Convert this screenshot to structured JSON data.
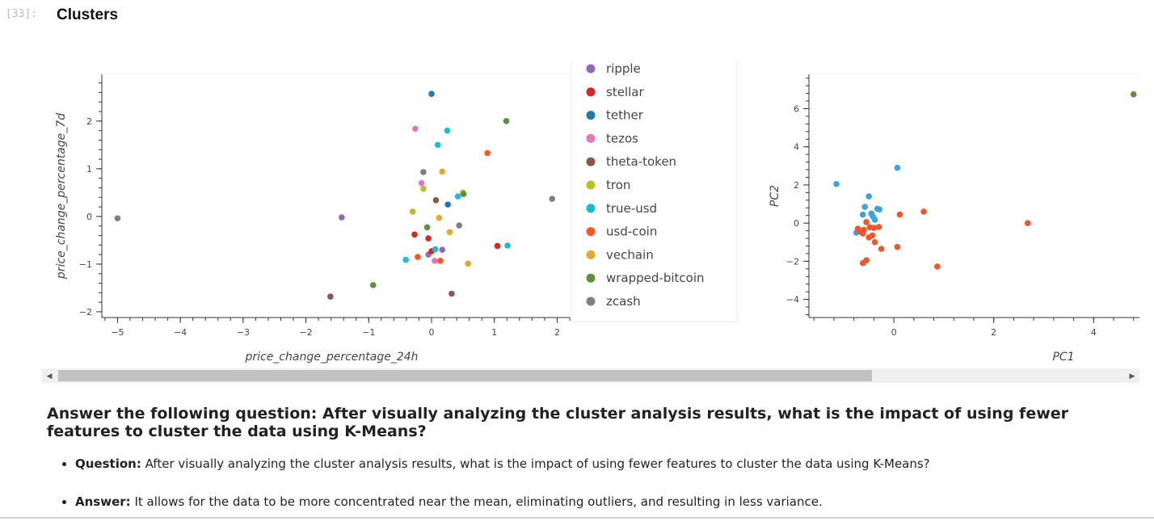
{
  "cell": {
    "prompt": "[33]:",
    "title": "Clusters"
  },
  "chart_data": [
    {
      "type": "scatter",
      "xlabel": "price_change_percentage_24h",
      "ylabel": "price_change_percentage_7d",
      "xlim": [
        -5.25,
        2.2
      ],
      "ylim": [
        -2.12,
        2.98
      ],
      "xticks": [
        -5,
        -4,
        -3,
        -2,
        -1,
        0,
        1,
        2
      ],
      "yticks": [
        -2,
        -1,
        0,
        1,
        2
      ],
      "legend_position": "right",
      "series": [
        {
          "name": "ripple",
          "color": "#9467bd",
          "points": [
            [
              -1.43,
              -0.02
            ],
            [
              -0.05,
              -0.8
            ],
            [
              0.17,
              -0.7
            ]
          ]
        },
        {
          "name": "stellar",
          "color": "#d62728",
          "points": [
            [
              -0.27,
              -0.38
            ],
            [
              -0.05,
              -0.46
            ],
            [
              0.0,
              -0.73
            ],
            [
              1.05,
              -0.62
            ]
          ]
        },
        {
          "name": "tether",
          "color": "#1f77b4",
          "points": [
            [
              0.0,
              2.57
            ],
            [
              0.26,
              0.25
            ]
          ]
        },
        {
          "name": "tezos",
          "color": "#e377c2",
          "points": [
            [
              -0.26,
              1.84
            ],
            [
              -0.16,
              0.7
            ],
            [
              0.05,
              -0.93
            ]
          ]
        },
        {
          "name": "theta-token",
          "color": "#8c564b",
          "points": [
            [
              -1.61,
              -1.68
            ],
            [
              0.07,
              0.34
            ],
            [
              0.32,
              -1.62
            ]
          ]
        },
        {
          "name": "tron",
          "color": "#bcbd22",
          "points": [
            [
              -0.3,
              0.1
            ],
            [
              -0.13,
              0.58
            ],
            [
              0.5,
              0.5
            ]
          ]
        },
        {
          "name": "true-usd",
          "color": "#17becf",
          "points": [
            [
              -0.41,
              -0.91
            ],
            [
              0.1,
              1.5
            ],
            [
              0.25,
              1.8
            ],
            [
              0.42,
              0.42
            ],
            [
              1.21,
              -0.61
            ],
            [
              0.06,
              -0.69
            ]
          ]
        },
        {
          "name": "usd-coin",
          "color": "#ff5722",
          "points": [
            [
              0.89,
              1.33
            ],
            [
              -0.22,
              -0.85
            ],
            [
              0.14,
              -0.93
            ]
          ]
        },
        {
          "name": "vechain",
          "color": "#e6a825",
          "points": [
            [
              0.17,
              0.94
            ],
            [
              0.29,
              -0.33
            ],
            [
              0.58,
              -0.99
            ],
            [
              0.12,
              -0.03
            ]
          ]
        },
        {
          "name": "wrapped-bitcoin",
          "color": "#5e8f3c",
          "points": [
            [
              1.19,
              2.0
            ],
            [
              -0.93,
              -1.44
            ],
            [
              -0.07,
              -0.23
            ],
            [
              0.51,
              0.47
            ]
          ]
        },
        {
          "name": "zcash",
          "color": "#7f7f7f",
          "points": [
            [
              -5.0,
              -0.04
            ],
            [
              1.92,
              0.37
            ],
            [
              0.44,
              -0.19
            ],
            [
              -0.13,
              0.93
            ]
          ]
        }
      ]
    },
    {
      "type": "scatter",
      "xlabel": "PC1",
      "ylabel": "PC2",
      "xlim": [
        -1.7,
        4.95
      ],
      "ylim": [
        -4.95,
        7.8
      ],
      "xticks": [
        0,
        2,
        4
      ],
      "yticks": [
        -4,
        -2,
        0,
        2,
        4,
        6
      ],
      "series": [
        {
          "color": "#3aa4dc",
          "points": [
            [
              -1.15,
              2.05
            ],
            [
              0.07,
              2.9
            ],
            [
              -0.5,
              1.4
            ],
            [
              -0.58,
              0.85
            ],
            [
              -0.33,
              0.75
            ],
            [
              -0.29,
              0.72
            ],
            [
              -0.45,
              0.5
            ],
            [
              -0.62,
              0.45
            ],
            [
              -0.42,
              0.35
            ],
            [
              -0.38,
              0.18
            ],
            [
              -0.75,
              -0.5
            ]
          ]
        },
        {
          "color": "#f2552c",
          "points": [
            [
              2.68,
              0.0
            ],
            [
              0.6,
              0.6
            ],
            [
              0.12,
              0.45
            ],
            [
              -0.55,
              0.05
            ],
            [
              -0.72,
              -0.3
            ],
            [
              -0.4,
              -0.25
            ],
            [
              -0.3,
              -0.2
            ],
            [
              -0.48,
              -0.22
            ],
            [
              -0.6,
              -0.35
            ],
            [
              -0.68,
              -0.45
            ],
            [
              -0.62,
              -0.55
            ],
            [
              -0.5,
              -0.75
            ],
            [
              -0.43,
              -0.65
            ],
            [
              -0.38,
              -1.0
            ],
            [
              -0.25,
              -1.35
            ],
            [
              0.07,
              -1.25
            ],
            [
              -0.55,
              -1.95
            ],
            [
              -0.62,
              -2.1
            ],
            [
              0.87,
              -2.28
            ]
          ]
        },
        {
          "color": "#5e8f3c",
          "points": [
            [
              4.8,
              6.75
            ]
          ]
        }
      ]
    }
  ],
  "answer": {
    "heading": "Answer the following question: After visually analyzing the cluster analysis results, what is the impact of using fewer features to cluster the data using K-Means?",
    "items": [
      {
        "label": "Question:",
        "text": "After visually analyzing the cluster analysis results, what is the impact of using fewer features to cluster the data using K-Means?"
      },
      {
        "label": "Answer:",
        "text": "It allows for the data to be more concentrated near the mean, eliminating outliers, and resulting in less variance."
      }
    ]
  }
}
